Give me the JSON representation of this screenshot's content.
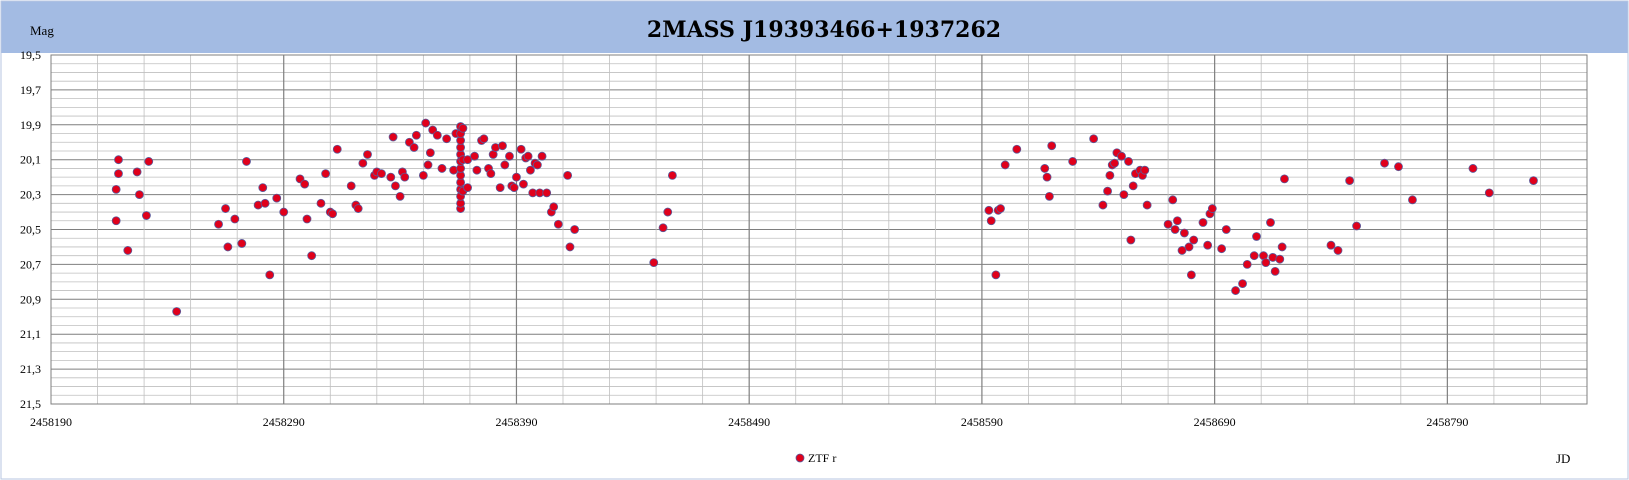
{
  "chart_data": {
    "type": "scatter",
    "title": "2MASS J19393466+1937262",
    "ylabel": "Mag",
    "xlabel": "JD",
    "y_inverted": true,
    "ylim": [
      19.5,
      21.5
    ],
    "xlim": [
      2458190,
      2458850
    ],
    "grid": true,
    "legend_position": "bottom-center",
    "x_ticks": [
      "2458190",
      "2458290",
      "2458390",
      "2458490",
      "2458590",
      "2458690",
      "2458790"
    ],
    "y_ticks": [
      "19,5",
      "19,7",
      "19,9",
      "20,1",
      "20,3",
      "20,5",
      "20,7",
      "20,9",
      "21,1",
      "21,3",
      "21,5"
    ],
    "colors": {
      "header_band": "#a3bbe3",
      "plot_border": "#7f7f7f",
      "grid_minor": "#bfbfbf",
      "grid_major": "#7f7f7f",
      "marker_fill": "#e0001b",
      "marker_edge": "#5a5a9a",
      "segment": "#3a60c8"
    },
    "series": [
      {
        "name": "ZTF r",
        "marker": "circle",
        "points": [
          [
            2458218,
            20.45
          ],
          [
            2458218,
            20.27
          ],
          [
            2458219,
            20.18
          ],
          [
            2458219,
            20.1
          ],
          [
            2458223,
            20.62
          ],
          [
            2458227,
            20.17
          ],
          [
            2458228,
            20.3
          ],
          [
            2458231,
            20.42
          ],
          [
            2458232,
            20.11
          ],
          [
            2458244,
            20.97
          ],
          [
            2458262,
            20.47
          ],
          [
            2458265,
            20.38
          ],
          [
            2458266,
            20.6
          ],
          [
            2458269,
            20.44
          ],
          [
            2458272,
            20.58
          ],
          [
            2458274,
            20.11
          ],
          [
            2458279,
            20.36
          ],
          [
            2458281,
            20.26
          ],
          [
            2458282,
            20.35
          ],
          [
            2458284,
            20.76
          ],
          [
            2458287,
            20.32
          ],
          [
            2458290,
            20.4
          ],
          [
            2458297,
            20.21
          ],
          [
            2458299,
            20.24
          ],
          [
            2458300,
            20.44
          ],
          [
            2458302,
            20.65
          ],
          [
            2458306,
            20.35
          ],
          [
            2458308,
            20.18
          ],
          [
            2458310,
            20.4
          ],
          [
            2458311,
            20.41
          ],
          [
            2458313,
            20.04
          ],
          [
            2458319,
            20.25
          ],
          [
            2458321,
            20.36
          ],
          [
            2458322,
            20.38
          ],
          [
            2458324,
            20.12
          ],
          [
            2458326,
            20.07
          ],
          [
            2458329,
            20.19
          ],
          [
            2458330,
            20.17
          ],
          [
            2458332,
            20.18
          ],
          [
            2458336,
            20.2
          ],
          [
            2458337,
            19.97
          ],
          [
            2458338,
            20.25
          ],
          [
            2458340,
            20.31
          ],
          [
            2458341,
            20.17
          ],
          [
            2458342,
            20.2
          ],
          [
            2458344,
            20.0
          ],
          [
            2458346,
            20.03
          ],
          [
            2458347,
            19.96
          ],
          [
            2458350,
            20.19
          ],
          [
            2458351,
            19.89
          ],
          [
            2458352,
            20.13
          ],
          [
            2458353,
            20.06
          ],
          [
            2458354,
            19.93
          ],
          [
            2458356,
            19.96
          ],
          [
            2458358,
            20.15
          ],
          [
            2458360,
            19.98
          ],
          [
            2458363,
            20.16
          ],
          [
            2458364,
            19.95
          ],
          [
            2458366,
            20.38
          ],
          [
            2458366,
            20.35
          ],
          [
            2458366,
            20.31
          ],
          [
            2458366,
            20.27
          ],
          [
            2458366,
            20.23
          ],
          [
            2458366,
            20.19
          ],
          [
            2458366,
            20.15
          ],
          [
            2458366,
            20.11
          ],
          [
            2458366,
            20.07
          ],
          [
            2458366,
            20.03
          ],
          [
            2458366,
            19.99
          ],
          [
            2458366,
            19.95
          ],
          [
            2458366,
            19.91
          ],
          [
            2458367,
            20.28
          ],
          [
            2458367,
            20.1
          ],
          [
            2458367,
            19.92
          ],
          [
            2458369,
            20.26
          ],
          [
            2458369,
            20.1
          ],
          [
            2458372,
            20.08
          ],
          [
            2458373,
            20.16
          ],
          [
            2458375,
            19.99
          ],
          [
            2458376,
            19.98
          ],
          [
            2458378,
            20.15
          ],
          [
            2458379,
            20.18
          ],
          [
            2458380,
            20.07
          ],
          [
            2458381,
            20.03
          ],
          [
            2458383,
            20.26
          ],
          [
            2458384,
            20.02
          ],
          [
            2458385,
            20.13
          ],
          [
            2458387,
            20.08
          ],
          [
            2458388,
            20.25
          ],
          [
            2458389,
            20.26
          ],
          [
            2458390,
            20.2
          ],
          [
            2458392,
            20.04
          ],
          [
            2458393,
            20.24
          ],
          [
            2458394,
            20.09
          ],
          [
            2458395,
            20.08
          ],
          [
            2458396,
            20.16
          ],
          [
            2458397,
            20.29
          ],
          [
            2458398,
            20.12
          ],
          [
            2458399,
            20.13
          ],
          [
            2458400,
            20.29
          ],
          [
            2458401,
            20.08
          ],
          [
            2458403,
            20.29
          ],
          [
            2458405,
            20.4
          ],
          [
            2458406,
            20.37
          ],
          [
            2458408,
            20.47
          ],
          [
            2458412,
            20.19
          ],
          [
            2458413,
            20.6
          ],
          [
            2458415,
            20.5
          ],
          [
            2458449,
            20.69
          ],
          [
            2458453,
            20.49
          ],
          [
            2458455,
            20.4
          ],
          [
            2458457,
            20.19
          ],
          [
            2458593,
            20.39
          ],
          [
            2458594,
            20.45
          ],
          [
            2458596,
            20.76
          ],
          [
            2458597,
            20.39
          ],
          [
            2458598,
            20.38
          ],
          [
            2458600,
            20.13
          ],
          [
            2458605,
            20.04
          ],
          [
            2458617,
            20.15
          ],
          [
            2458618,
            20.2
          ],
          [
            2458619,
            20.31
          ],
          [
            2458620,
            20.02
          ],
          [
            2458629,
            20.11
          ],
          [
            2458638,
            19.98
          ],
          [
            2458642,
            20.36
          ],
          [
            2458644,
            20.28
          ],
          [
            2458645,
            20.19
          ],
          [
            2458646,
            20.13
          ],
          [
            2458647,
            20.12
          ],
          [
            2458648,
            20.06
          ],
          [
            2458650,
            20.08
          ],
          [
            2458651,
            20.3
          ],
          [
            2458653,
            20.11
          ],
          [
            2458654,
            20.56
          ],
          [
            2458655,
            20.25
          ],
          [
            2458656,
            20.18
          ],
          [
            2458658,
            20.16
          ],
          [
            2458659,
            20.19
          ],
          [
            2458660,
            20.16
          ],
          [
            2458661,
            20.36
          ],
          [
            2458670,
            20.47
          ],
          [
            2458672,
            20.33
          ],
          [
            2458673,
            20.5
          ],
          [
            2458674,
            20.45
          ],
          [
            2458676,
            20.62
          ],
          [
            2458677,
            20.52
          ],
          [
            2458679,
            20.6
          ],
          [
            2458680,
            20.76
          ],
          [
            2458681,
            20.56
          ],
          [
            2458685,
            20.46
          ],
          [
            2458687,
            20.59
          ],
          [
            2458688,
            20.41
          ],
          [
            2458689,
            20.38
          ],
          [
            2458693,
            20.61
          ],
          [
            2458695,
            20.5
          ],
          [
            2458699,
            20.85
          ],
          [
            2458702,
            20.81
          ],
          [
            2458704,
            20.7
          ],
          [
            2458707,
            20.65
          ],
          [
            2458708,
            20.54
          ],
          [
            2458711,
            20.65
          ],
          [
            2458712,
            20.69
          ],
          [
            2458714,
            20.46
          ],
          [
            2458715,
            20.66
          ],
          [
            2458716,
            20.74
          ],
          [
            2458718,
            20.67
          ],
          [
            2458719,
            20.6
          ],
          [
            2458720,
            20.21
          ],
          [
            2458740,
            20.59
          ],
          [
            2458743,
            20.62
          ],
          [
            2458748,
            20.22
          ],
          [
            2458751,
            20.48
          ],
          [
            2458763,
            20.12
          ],
          [
            2458769,
            20.14
          ],
          [
            2458775,
            20.33
          ],
          [
            2458801,
            20.15
          ],
          [
            2458808,
            20.29
          ],
          [
            2458827,
            20.22
          ]
        ],
        "vertical_segment": {
          "x": 2458366,
          "y_top": 19.91,
          "y_bottom": 20.38
        }
      }
    ]
  }
}
